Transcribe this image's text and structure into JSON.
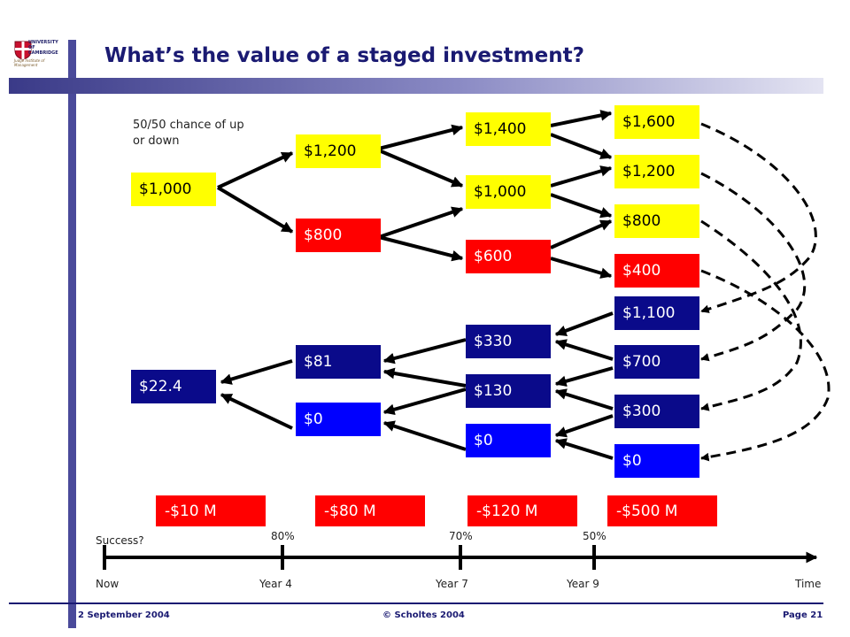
{
  "logo": {
    "title": "UNIVERSITY OF CAMBRIDGE",
    "subtitle": "Judge Institute of Management"
  },
  "title": "What’s the value of a staged investment?",
  "note": "50/50 chance of up or down",
  "tree_upper": {
    "now": "$1,000",
    "year4": [
      "$1,200",
      "$800"
    ],
    "year7": [
      "$1,400",
      "$1,000",
      "$600"
    ],
    "year9": [
      "$1,600",
      "$1,200",
      "$800",
      "$400"
    ]
  },
  "tree_lower": {
    "now": "$22.4",
    "year4": [
      "$81",
      "$0"
    ],
    "year7": [
      "$330",
      "$130",
      "$0"
    ],
    "year9": [
      "$1,100",
      "$700",
      "$300",
      "$0"
    ]
  },
  "costs": [
    "-$10 M",
    "-$80 M",
    "-$120 M",
    "-$500 M"
  ],
  "timeline": {
    "success_label": "Success?",
    "probabilities": [
      "80%",
      "70%",
      "50%"
    ],
    "labels": [
      "Now",
      "Year 4",
      "Year 7",
      "Year 9",
      "Time"
    ]
  },
  "colors": {
    "up": "#ffff00",
    "down": "#ff0000",
    "value": "#0a0a8a",
    "zero": "#0000ff",
    "theme": "#1a1a72"
  },
  "footer": {
    "date": "2 September 2004",
    "copyright": "© Scholtes 2004",
    "page": "Page 21"
  }
}
